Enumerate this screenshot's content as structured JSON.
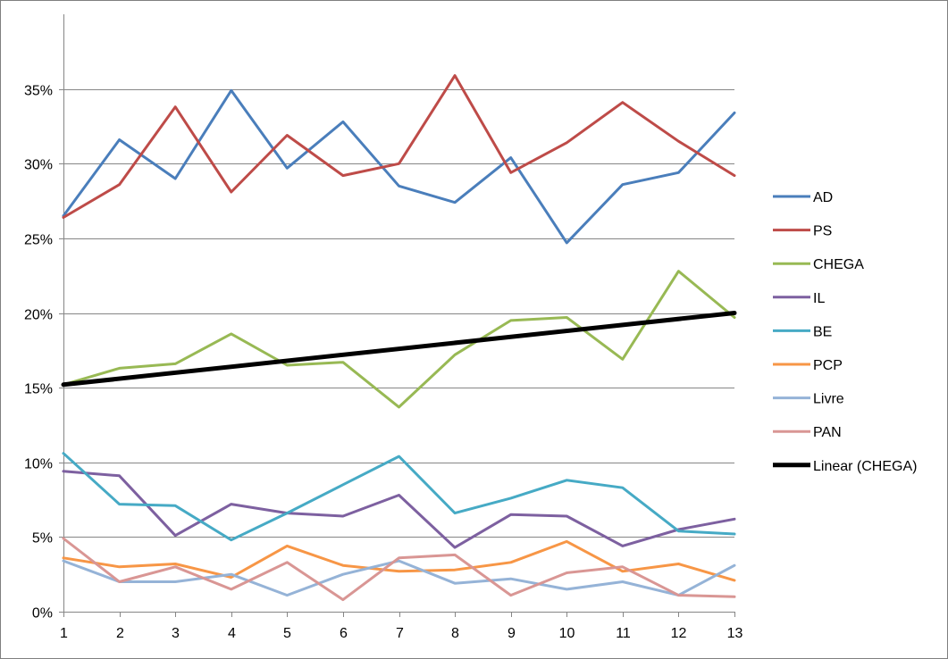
{
  "chart_data": {
    "type": "line",
    "title": "",
    "xlabel": "",
    "ylabel": "",
    "x": [
      1,
      2,
      3,
      4,
      5,
      6,
      7,
      8,
      9,
      10,
      11,
      12,
      13
    ],
    "x_tick_labels": [
      "1",
      "2",
      "3",
      "4",
      "5",
      "6",
      "7",
      "8",
      "9",
      "10",
      "11",
      "12",
      "13"
    ],
    "ylim": [
      0,
      0.4
    ],
    "y_ticks": [
      0,
      0.05,
      0.1,
      0.15,
      0.2,
      0.25,
      0.3,
      0.35
    ],
    "y_tick_labels": [
      "0%",
      "5%",
      "10%",
      "15%",
      "20%",
      "25%",
      "30%",
      "35%"
    ],
    "grid": "horizontal",
    "legend_position": "right",
    "series": [
      {
        "name": "AD",
        "color": "#4a7ebb",
        "values": [
          0.265,
          0.316,
          0.29,
          0.349,
          0.297,
          0.328,
          0.285,
          0.274,
          0.304,
          0.247,
          0.286,
          0.294,
          0.334
        ]
      },
      {
        "name": "PS",
        "color": "#be4b48",
        "values": [
          0.264,
          0.286,
          0.338,
          0.281,
          0.319,
          0.292,
          0.3,
          0.359,
          0.294,
          0.314,
          0.341,
          0.315,
          0.292
        ]
      },
      {
        "name": "CHEGA",
        "color": "#98b954",
        "values": [
          0.152,
          0.163,
          0.166,
          0.186,
          0.165,
          0.167,
          0.137,
          0.172,
          0.195,
          0.197,
          0.169,
          0.228,
          0.197
        ]
      },
      {
        "name": "IL",
        "color": "#7d60a0",
        "values": [
          0.094,
          0.091,
          0.051,
          0.072,
          0.066,
          0.064,
          0.078,
          0.043,
          0.065,
          0.064,
          0.044,
          0.055,
          0.062
        ]
      },
      {
        "name": "BE",
        "color": "#46aac5",
        "values": [
          0.106,
          0.072,
          0.071,
          0.048,
          0.066,
          0.085,
          0.104,
          0.066,
          0.076,
          0.088,
          0.083,
          0.054,
          0.052
        ]
      },
      {
        "name": "PCP",
        "color": "#f79646",
        "values": [
          0.036,
          0.03,
          0.032,
          0.023,
          0.044,
          0.031,
          0.027,
          0.028,
          0.033,
          0.047,
          0.027,
          0.032,
          0.021
        ]
      },
      {
        "name": "Livre",
        "color": "#95b3d7",
        "values": [
          0.034,
          0.02,
          0.02,
          0.025,
          0.011,
          0.025,
          0.034,
          0.019,
          0.022,
          0.015,
          0.02,
          0.011,
          0.031
        ]
      },
      {
        "name": "PAN",
        "color": "#d99694",
        "values": [
          0.049,
          0.02,
          0.03,
          0.015,
          0.033,
          0.008,
          0.036,
          0.038,
          0.011,
          0.026,
          0.03,
          0.011,
          0.01
        ]
      }
    ],
    "trendline": {
      "name": "Linear (CHEGA)",
      "color": "#000000",
      "of": "CHEGA",
      "values": [
        0.152,
        0.2
      ]
    }
  }
}
